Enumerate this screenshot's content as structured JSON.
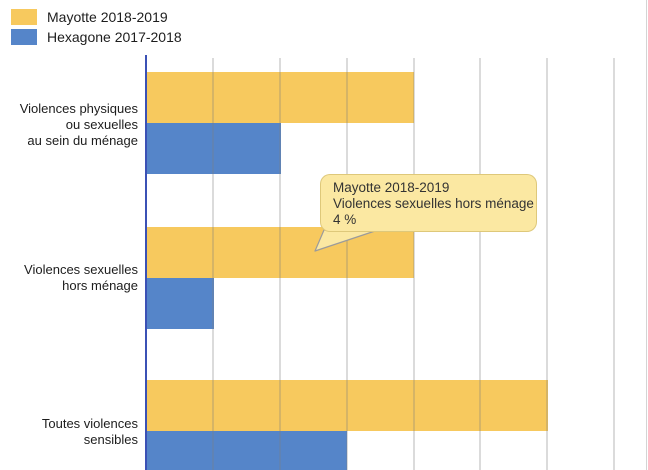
{
  "legend": {
    "items": [
      {
        "label": "Mayotte 2018-2019",
        "color": "#f7c95e"
      },
      {
        "label": "Hexagone 2017-2018",
        "color": "#5585c9"
      }
    ]
  },
  "tooltip": {
    "series": "Mayotte 2018-2019",
    "category": "Violences sexuelles hors ménage",
    "value": "4 %"
  },
  "colors": {
    "bar_yellow": "#f7c95e",
    "bar_blue": "#5585c9",
    "axis_line": "#3b51b5",
    "gridline": "rgba(125,125,125,0.28)",
    "tooltip_bg": "#fbe8a2",
    "tooltip_border": "rgba(170,140,50,0.35)",
    "tail_outline": "#9b9b9b",
    "frame_edge": "#d4d4d4",
    "text": "#1d1d1d"
  },
  "chart_data": {
    "type": "bar",
    "orientation": "horizontal",
    "title": "",
    "xlabel": "",
    "ylabel": "",
    "unit": "%",
    "categories": [
      "Violences physiques ou sexuelles au sein du ménage",
      "Violences sexuelles hors ménage",
      "Toutes violences sensibles"
    ],
    "category_label_lines": [
      [
        "Violences physiques",
        "ou sexuelles",
        "au sein du ménage"
      ],
      [
        "Violences sexuelles",
        "hors ménage"
      ],
      [
        "Toutes violences",
        "sensibles"
      ]
    ],
    "series": [
      {
        "name": "Mayotte 2018-2019",
        "color": "#f7c95e",
        "values": [
          4,
          4,
          6
        ]
      },
      {
        "name": "Hexagone 2017-2018",
        "color": "#5585c9",
        "values": [
          2,
          1,
          3
        ]
      }
    ],
    "xlim": [
      0,
      7
    ],
    "grid": true,
    "legend_position": "top-left",
    "tooltip_shown": {
      "series": "Mayotte 2018-2019",
      "category": "Violences sexuelles hors ménage",
      "value": 4,
      "value_label": "4 %"
    }
  }
}
